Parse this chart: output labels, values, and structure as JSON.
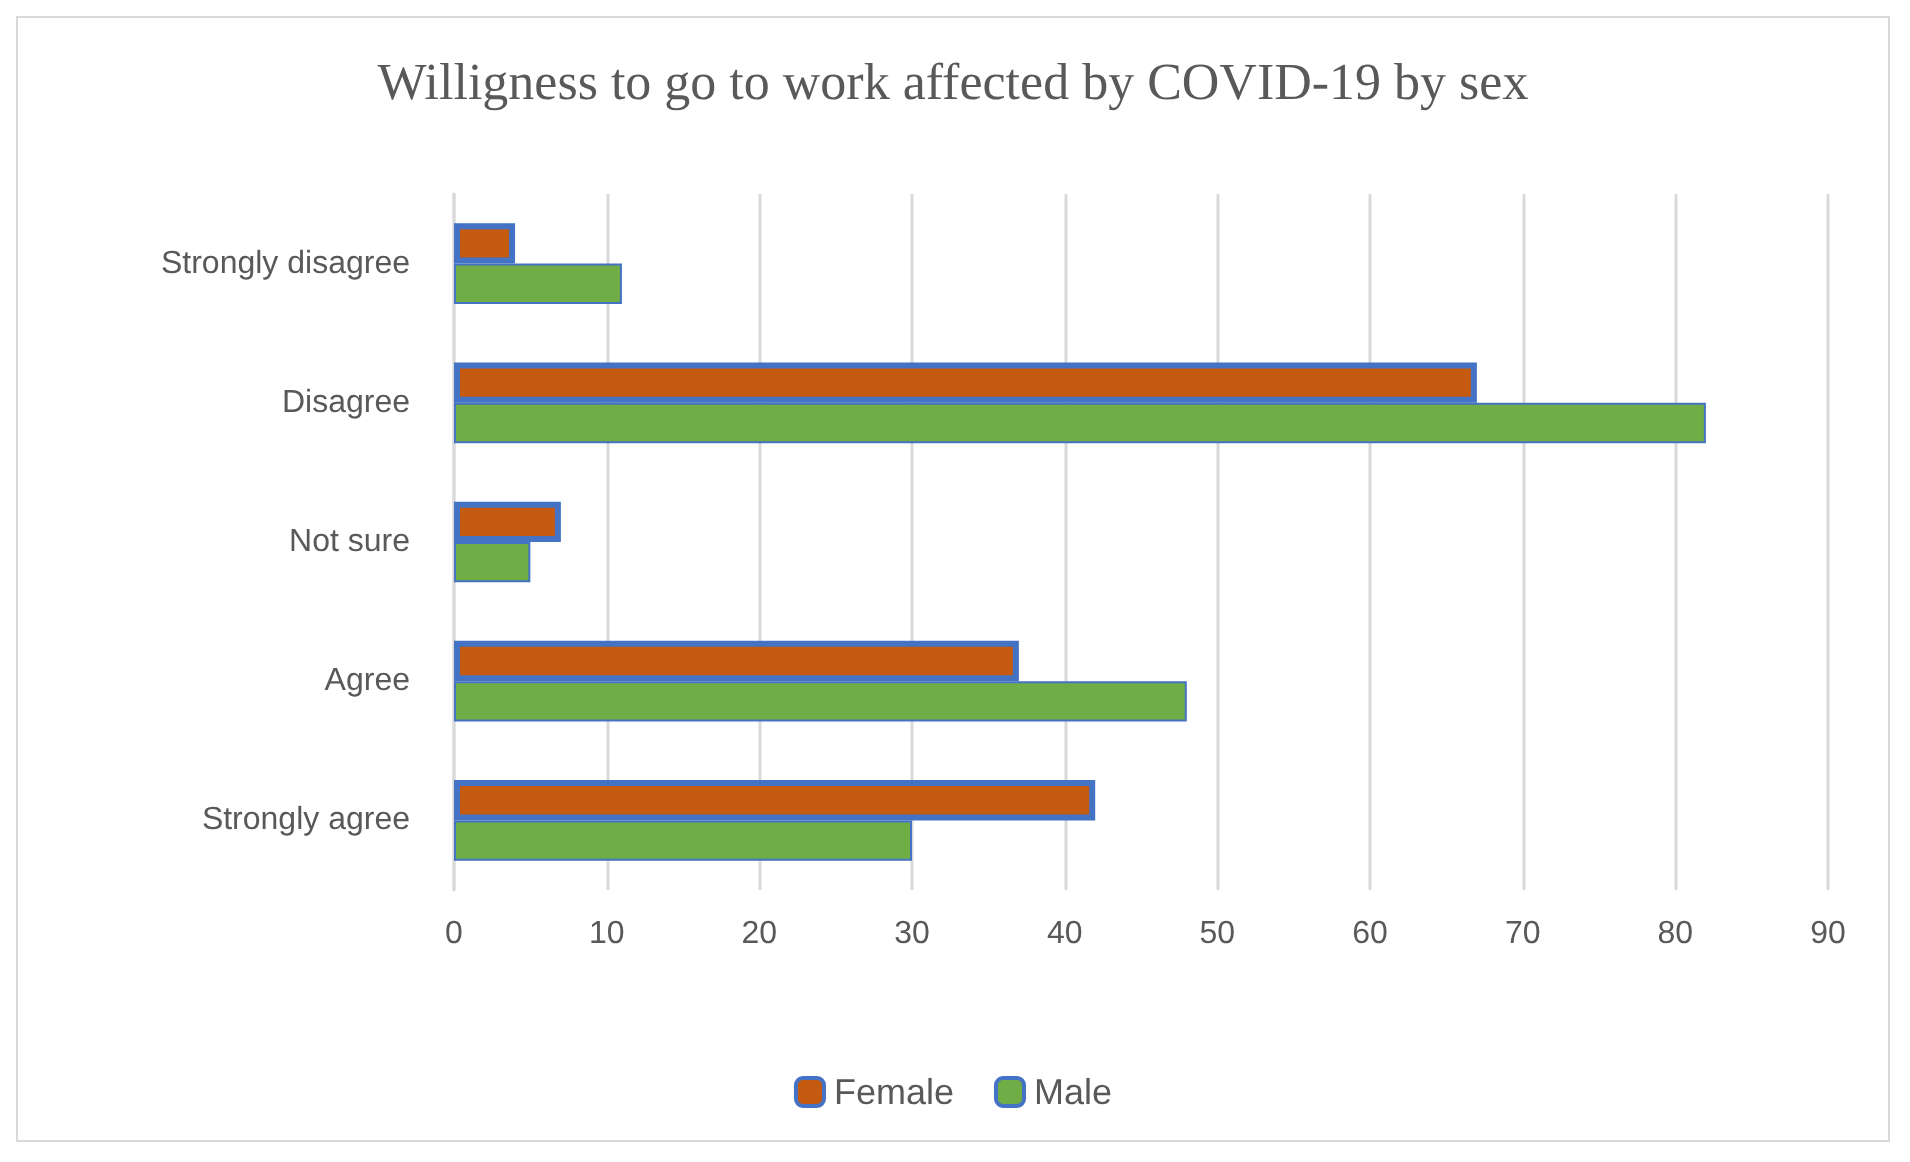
{
  "chart_data": {
    "type": "bar",
    "orientation": "horizontal",
    "title": "Willigness to go to work affected by COVID-19 by sex",
    "categories": [
      "Strongly disagree",
      "Disagree",
      "Not sure",
      "Agree",
      "Strongly agree"
    ],
    "series": [
      {
        "name": "Female",
        "color": "#c55a11",
        "values": [
          4,
          67,
          7,
          37,
          42
        ]
      },
      {
        "name": "Male",
        "color": "#70ad47",
        "values": [
          11,
          82,
          5,
          48,
          30
        ]
      }
    ],
    "xlim": [
      0,
      90
    ],
    "xticks": [
      0,
      10,
      20,
      30,
      40,
      50,
      60,
      70,
      80,
      90
    ],
    "grid": "x",
    "legend": "bottom"
  }
}
